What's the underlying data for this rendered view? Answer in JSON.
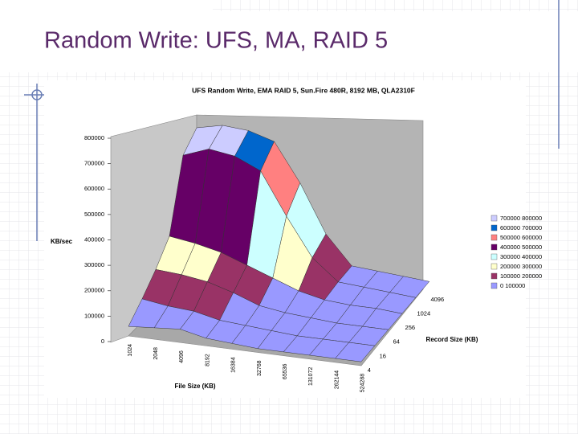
{
  "slide_title": "Random Write: UFS, MA, RAID 5",
  "chart_data": {
    "type": "surface3d",
    "title": "UFS Random Write, EMA RAID 5, Sun.Fire 480R, 8192 MB, QLA2310F",
    "z_label": "KB/sec",
    "x_label": "File Size (KB)",
    "y_label": "Record Size (KB)",
    "x": [
      "1024",
      "2048",
      "4096",
      "8192",
      "16384",
      "32768",
      "65536",
      "131072",
      "262144",
      "524288"
    ],
    "y": [
      "4",
      "16",
      "64",
      "256",
      "1024",
      "4096"
    ],
    "values": [
      [
        50000,
        60000,
        70000,
        40000,
        30000,
        20000,
        20000,
        20000,
        20000,
        20000
      ],
      [
        120000,
        100000,
        90000,
        60000,
        50000,
        40000,
        30000,
        30000,
        30000,
        30000
      ],
      [
        200000,
        190000,
        170000,
        130000,
        80000,
        60000,
        50000,
        40000,
        40000,
        40000
      ],
      [
        300000,
        280000,
        250000,
        200000,
        150000,
        100000,
        70000,
        60000,
        60000,
        50000
      ],
      [
        650000,
        700000,
        680000,
        620000,
        400000,
        200000,
        90000,
        80000,
        70000,
        60000
      ],
      [
        720000,
        750000,
        740000,
        700000,
        500000,
        250000,
        100000,
        90000,
        80000,
        70000
      ]
    ],
    "zlim": [
      0,
      800000
    ],
    "zticks": [
      0,
      100000,
      200000,
      300000,
      400000,
      500000,
      600000,
      700000,
      800000
    ],
    "legend": [
      {
        "label": "700000 800000",
        "range": [
          700000,
          800000
        ],
        "color": "#ccccff"
      },
      {
        "label": "600000 700000",
        "range": [
          600000,
          700000
        ],
        "color": "#0066cc"
      },
      {
        "label": "500000 600000",
        "range": [
          500000,
          600000
        ],
        "color": "#ff8080"
      },
      {
        "label": "400000 500000",
        "range": [
          400000,
          500000
        ],
        "color": "#660066"
      },
      {
        "label": "300000 400000",
        "range": [
          300000,
          400000
        ],
        "color": "#ccffff"
      },
      {
        "label": "200000 300000",
        "range": [
          200000,
          300000
        ],
        "color": "#ffffcc"
      },
      {
        "label": "100000 200000",
        "range": [
          100000,
          200000
        ],
        "color": "#993366"
      },
      {
        "label": "0 100000",
        "range": [
          0,
          100000
        ],
        "color": "#9999ff"
      }
    ]
  }
}
